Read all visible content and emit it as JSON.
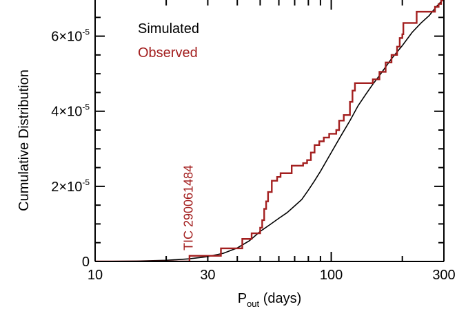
{
  "chart_data": {
    "type": "line",
    "xscale": "log",
    "xlim": [
      10,
      300
    ],
    "ylim": [
      0,
      7e-05
    ],
    "xlabel": {
      "base": "P",
      "sub": "out",
      "rest": " (days)"
    },
    "ylabel": "Cumulative Distribution",
    "x_ticks": [
      {
        "value": 10,
        "label": "10"
      },
      {
        "value": 30,
        "label": "30"
      },
      {
        "value": 100,
        "label": "100"
      },
      {
        "value": 300,
        "label": "300"
      }
    ],
    "y_ticks": [
      {
        "value": 0,
        "label": "0",
        "mant": "",
        "exp": ""
      },
      {
        "value": 2e-05,
        "label": "2×10-5",
        "mant": "2×10",
        "exp": "-5"
      },
      {
        "value": 4e-05,
        "label": "4×10-5",
        "mant": "4×10",
        "exp": "-5"
      },
      {
        "value": 6e-05,
        "label": "6×10-5",
        "mant": "6×10",
        "exp": "-5"
      }
    ],
    "legend": [
      {
        "name": "Simulated",
        "color": "#000000"
      },
      {
        "name": "Observed",
        "color": "#a31f1f"
      }
    ],
    "annotation": {
      "text": "TIC 290061484",
      "x": 25,
      "color": "#a31f1f"
    },
    "series": [
      {
        "name": "Simulated",
        "color": "#000000",
        "style": "line",
        "points": [
          [
            10,
            0.0
          ],
          [
            15,
            1e-07
          ],
          [
            20,
            3e-07
          ],
          [
            25,
            7e-07
          ],
          [
            30,
            1.3e-06
          ],
          [
            35,
            2.2e-06
          ],
          [
            40,
            3.6e-06
          ],
          [
            45,
            5.5e-06
          ],
          [
            50,
            8e-06
          ],
          [
            55,
            9.8e-06
          ],
          [
            60,
            1.15e-05
          ],
          [
            65,
            1.3e-05
          ],
          [
            70,
            1.48e-05
          ],
          [
            75,
            1.65e-05
          ],
          [
            80,
            1.9e-05
          ],
          [
            85,
            2.15e-05
          ],
          [
            90,
            2.4e-05
          ],
          [
            100,
            2.9e-05
          ],
          [
            110,
            3.35e-05
          ],
          [
            120,
            3.75e-05
          ],
          [
            130,
            4.15e-05
          ],
          [
            140,
            4.45e-05
          ],
          [
            150,
            4.72e-05
          ],
          [
            160,
            4.95e-05
          ],
          [
            180,
            5.4e-05
          ],
          [
            200,
            5.75e-05
          ],
          [
            220,
            6.1e-05
          ],
          [
            240,
            6.35e-05
          ],
          [
            260,
            6.55e-05
          ],
          [
            280,
            6.8e-05
          ],
          [
            300,
            7e-05
          ]
        ]
      },
      {
        "name": "Observed",
        "color": "#a31f1f",
        "style": "step",
        "points": [
          [
            10,
            0.0
          ],
          [
            25,
            0.0
          ],
          [
            25.1,
            1.5e-06
          ],
          [
            34,
            1.5e-06
          ],
          [
            34.1,
            3.5e-06
          ],
          [
            41,
            3.5e-06
          ],
          [
            42,
            6e-06
          ],
          [
            45,
            6e-06
          ],
          [
            46,
            7.5e-06
          ],
          [
            49,
            7.5e-06
          ],
          [
            50,
            9e-06
          ],
          [
            51,
            1.1e-05
          ],
          [
            52,
            1.4e-05
          ],
          [
            53,
            1.6e-05
          ],
          [
            54,
            1.85e-05
          ],
          [
            56,
            2.15e-05
          ],
          [
            59,
            2.25e-05
          ],
          [
            61,
            2.35e-05
          ],
          [
            67,
            2.35e-05
          ],
          [
            68,
            2.55e-05
          ],
          [
            75,
            2.55e-05
          ],
          [
            76,
            2.62e-05
          ],
          [
            79,
            2.7e-05
          ],
          [
            82,
            2.9e-05
          ],
          [
            85,
            3.1e-05
          ],
          [
            89,
            3.2e-05
          ],
          [
            93,
            3.3e-05
          ],
          [
            98,
            3.4e-05
          ],
          [
            105,
            3.5e-05
          ],
          [
            108,
            3.75e-05
          ],
          [
            113,
            3.9e-05
          ],
          [
            120,
            4.25e-05
          ],
          [
            123,
            4.55e-05
          ],
          [
            126,
            4.75e-05
          ],
          [
            140,
            4.75e-05
          ],
          [
            150,
            4.85e-05
          ],
          [
            160,
            5.05e-05
          ],
          [
            170,
            5.3e-05
          ],
          [
            180,
            5.5e-05
          ],
          [
            190,
            5.72e-05
          ],
          [
            195,
            5.95e-05
          ],
          [
            200,
            6.05e-05
          ],
          [
            202,
            6.35e-05
          ],
          [
            225,
            6.35e-05
          ],
          [
            230,
            6.65e-05
          ],
          [
            270,
            6.65e-05
          ],
          [
            275,
            6.78e-05
          ],
          [
            285,
            6.86e-05
          ],
          [
            292,
            6.95e-05
          ],
          [
            300,
            7e-05
          ]
        ]
      }
    ]
  }
}
